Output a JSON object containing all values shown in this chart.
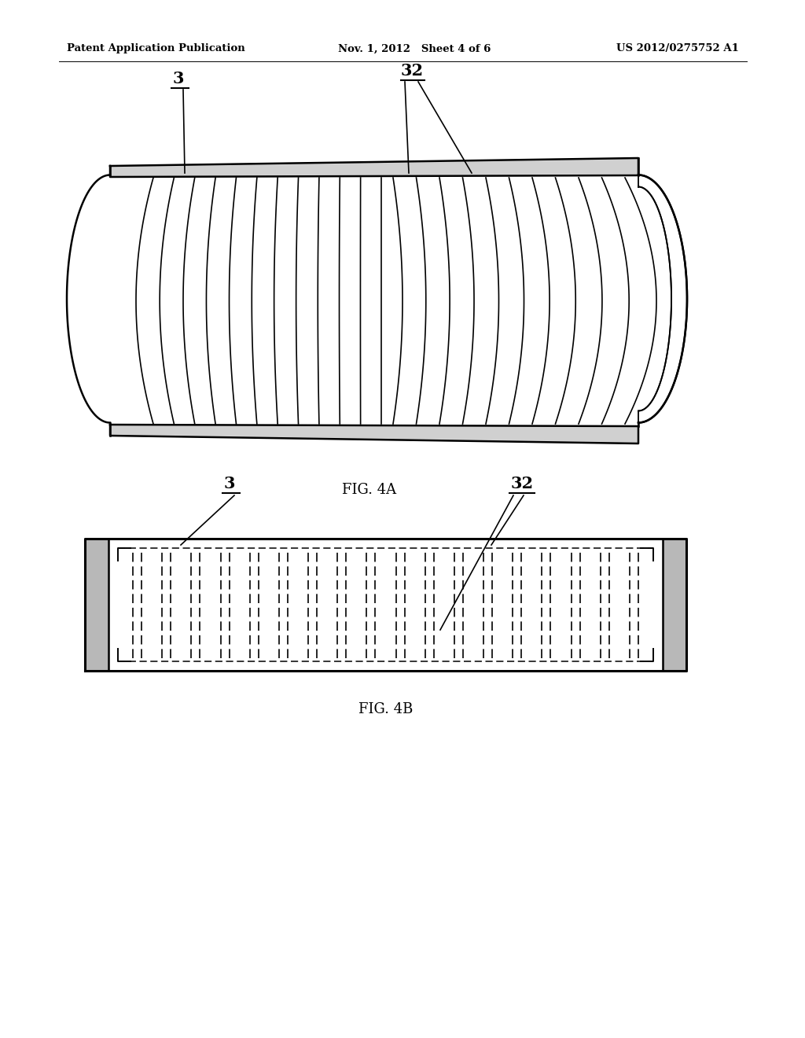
{
  "background_color": "#ffffff",
  "header_left": "Patent Application Publication",
  "header_center": "Nov. 1, 2012   Sheet 4 of 6",
  "header_right": "US 2012/0275752 A1",
  "fig4a_label": "FIG. 4A",
  "fig4b_label": "FIG. 4B",
  "label_3": "3",
  "label_32": "32",
  "lc": "#000000",
  "gray_fill": "#d0d0d0",
  "white_fill": "#ffffff"
}
